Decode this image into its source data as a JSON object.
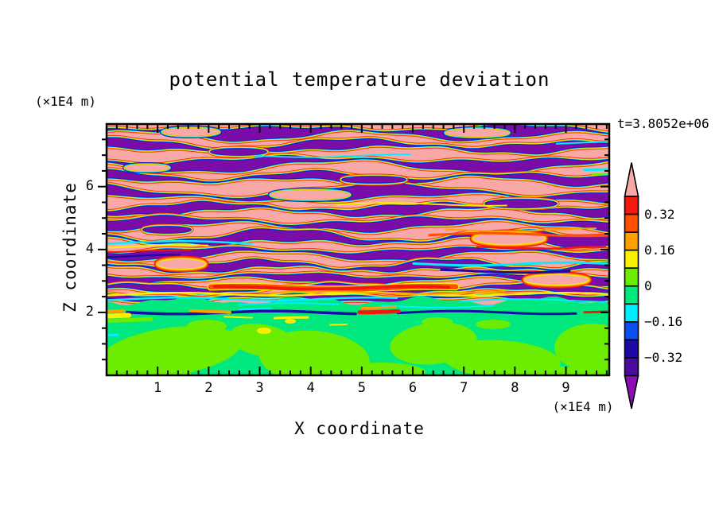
{
  "chart_data": {
    "type": "heatmap",
    "subtype": "filled_contour",
    "title": "potential temperature deviation",
    "annotation": "t=3.8052e+06",
    "xlabel": "X coordinate",
    "x_units": "(×1E4 m)",
    "ylabel": "Z coordinate",
    "y_units": "(×1E4 m)",
    "x_range": [
      0,
      9.85
    ],
    "y_range": [
      0,
      8.0
    ],
    "x_major_ticks": [
      "1",
      "2",
      "3",
      "4",
      "5",
      "6",
      "7",
      "8",
      "9"
    ],
    "x_major_values": [
      1,
      2,
      3,
      4,
      5,
      6,
      7,
      8,
      9
    ],
    "x_minor_step": 0.2,
    "y_major_ticks": [
      "2",
      "4",
      "6"
    ],
    "y_major_values": [
      2,
      4,
      6
    ],
    "y_minor_step": 0.5,
    "grid": false,
    "legend_position": "right",
    "colorbar": {
      "labels": [
        "0.32",
        "0.16",
        "0",
        "−0.16",
        "−0.32"
      ],
      "label_boundary_index": [
        1,
        3,
        5,
        7,
        9
      ],
      "levels": [
        -0.4,
        -0.32,
        -0.24,
        -0.16,
        -0.08,
        0,
        0.08,
        0.16,
        0.24,
        0.32,
        0.4
      ],
      "colors_low_to_high": [
        "#8B0FB5",
        "#4B0B9E",
        "#1C0AA5",
        "#0A50F0",
        "#00EEFF",
        "#00E87E",
        "#6CEC00",
        "#FBF000",
        "#FFA000",
        "#FF5000",
        "#F5180F",
        "#F9A8A8"
      ],
      "under_color": "#8B0FB5",
      "over_color": "#F9A8A8"
    },
    "field_summary": "Stratified wave field: alternating strong positive (pink, >0.4) and strong negative (purple, <-0.4) horizontal bands above z=2e4 m with thin rainbow contour fringes; near-zero (green, ±0.08) convective region below z=2e4 m with a sharp interface line at z≈2e4 m.",
    "render": {
      "bg": "#F9A8A8",
      "band_fill": "#7A0CA8",
      "band_halos": [
        [
          "#F5180F",
          7
        ],
        [
          "#FFA000",
          5.6
        ],
        [
          "#FBF000",
          4.2
        ],
        [
          "#00EEFF",
          2.8
        ],
        [
          "#0A50F0",
          1.8
        ],
        [
          "#1C0AA5",
          0.9
        ]
      ],
      "pink_halos": [
        [
          "#1C0AA5",
          6
        ],
        [
          "#0A50F0",
          4.8
        ],
        [
          "#00EEFF",
          3.6
        ],
        [
          "#6CEC00",
          2.6
        ],
        [
          "#FBF000",
          1.8
        ],
        [
          "#FFA000",
          0.9
        ]
      ],
      "ring_halos": [
        [
          "#F5180F",
          9
        ],
        [
          "#FF5000",
          6.8
        ],
        [
          "#FFA000",
          4.6
        ],
        [
          "#FBF000",
          2.6
        ]
      ],
      "bands": [
        {
          "y": 166,
          "th": 14,
          "amp": 3,
          "wl": 260,
          "ph": 0.5,
          "twl": 300,
          "tph": 1.2,
          "amp2": 1.5,
          "wl2": 97,
          "ph2": 2.0
        },
        {
          "y": 184,
          "th": 10,
          "amp": 4,
          "wl": 330,
          "ph": 2.2,
          "twl": 260,
          "tph": 4.0,
          "amp2": 1.5,
          "wl2": 83,
          "ph2": 0.4
        },
        {
          "y": 205,
          "th": 13,
          "amp": 5,
          "wl": 380,
          "ph": 4.1,
          "twl": 340,
          "tph": 2.6,
          "amp2": 2,
          "wl2": 110,
          "ph2": 3.1
        },
        {
          "y": 224,
          "th": 9,
          "amp": 4,
          "wl": 240,
          "ph": 1.1,
          "twl": 300,
          "tph": 5.2,
          "amp2": 1.5,
          "wl2": 90,
          "ph2": 1.7
        },
        {
          "y": 244,
          "th": 15,
          "amp": 5,
          "wl": 420,
          "ph": 3.3,
          "twl": 380,
          "tph": 0.4,
          "amp2": 2,
          "wl2": 120,
          "ph2": 4.4
        },
        {
          "y": 263,
          "th": 10,
          "amp": 4,
          "wl": 300,
          "ph": 5.0,
          "twl": 280,
          "tph": 2.9,
          "amp2": 1.5,
          "wl2": 76,
          "ph2": 2.6
        },
        {
          "y": 281,
          "th": 11,
          "amp": 4,
          "wl": 350,
          "ph": 0.2,
          "twl": 320,
          "tph": 4.6,
          "amp2": 2,
          "wl2": 105,
          "ph2": 5.0
        },
        {
          "y": 300,
          "th": 12,
          "amp": 5,
          "wl": 270,
          "ph": 2.7,
          "twl": 360,
          "tph": 1.8,
          "amp2": 2,
          "wl2": 88,
          "ph2": 0.8
        },
        {
          "y": 318,
          "th": 10,
          "amp": 4,
          "wl": 310,
          "ph": 4.6,
          "twl": 300,
          "tph": 3.5,
          "amp2": 1.5,
          "wl2": 95,
          "ph2": 3.9
        },
        {
          "y": 335,
          "th": 9,
          "amp": 4,
          "wl": 230,
          "ph": 1.7,
          "twl": 260,
          "tph": 0.9,
          "amp2": 1.5,
          "wl2": 70,
          "ph2": 1.3
        },
        {
          "y": 350,
          "th": 9,
          "amp": 3,
          "wl": 290,
          "ph": 3.9,
          "twl": 310,
          "tph": 5.6,
          "amp2": 1.5,
          "wl2": 102,
          "ph2": 4.7
        },
        {
          "y": 363,
          "th": 7,
          "amp": 3,
          "wl": 250,
          "ph": 0.9,
          "twl": 240,
          "tph": 2.3,
          "amp2": 1,
          "wl2": 65,
          "ph2": 2.2
        },
        {
          "y": 374,
          "th": 5,
          "amp": 2,
          "wl": 270,
          "ph": 2.9,
          "twl": 280,
          "tph": 4.4,
          "amp2": 1,
          "wl2": 80,
          "ph2": 0.6
        }
      ],
      "pink_blobs": [
        {
          "cx": 240,
          "cy": 166,
          "rx": 36,
          "ry": 5
        },
        {
          "cx": 600,
          "cy": 167,
          "rx": 40,
          "ry": 5
        },
        {
          "cx": 390,
          "cy": 245,
          "rx": 50,
          "ry": 6
        },
        {
          "cx": 185,
          "cy": 211,
          "rx": 28,
          "ry": 4
        }
      ],
      "lenses": [
        {
          "cx": 470,
          "cy": 226,
          "rx": 40,
          "ry": 4
        },
        {
          "cx": 300,
          "cy": 191,
          "rx": 35,
          "ry": 4
        },
        {
          "cx": 655,
          "cy": 256,
          "rx": 45,
          "ry": 5
        },
        {
          "cx": 210,
          "cy": 289,
          "rx": 30,
          "ry": 4
        }
      ],
      "ring_blobs": [
        {
          "cx": 228,
          "cy": 332,
          "rx": 30,
          "ry": 6
        },
        {
          "cx": 640,
          "cy": 300,
          "rx": 45,
          "ry": 7
        },
        {
          "cx": 700,
          "cy": 352,
          "rx": 40,
          "ry": 6
        }
      ],
      "streaks": [
        {
          "x0": 135,
          "x1": 320,
          "y": 305,
          "c": "#00EEFF",
          "w": 2.5
        },
        {
          "x0": 135,
          "x1": 265,
          "y": 310,
          "c": "#FBF000",
          "w": 2
        },
        {
          "x0": 135,
          "x1": 240,
          "y": 316,
          "c": "#F5180F",
          "w": 2
        },
        {
          "x0": 135,
          "x1": 230,
          "y": 322,
          "c": "#1C0AA5",
          "w": 2.5
        },
        {
          "x0": 540,
          "x1": 765,
          "y": 295,
          "c": "#FF5000",
          "w": 3
        },
        {
          "x0": 560,
          "x1": 750,
          "y": 289,
          "c": "#FFA000",
          "w": 2
        },
        {
          "x0": 600,
          "x1": 766,
          "y": 311,
          "c": "#F5180F",
          "w": 2.5
        },
        {
          "x0": 520,
          "x1": 766,
          "y": 332,
          "c": "#00EEFF",
          "w": 3
        },
        {
          "x0": 555,
          "x1": 720,
          "y": 341,
          "c": "#1C0AA5",
          "w": 3
        },
        {
          "x0": 700,
          "x1": 766,
          "y": 180,
          "c": "#00EEFF",
          "w": 2
        },
        {
          "x0": 735,
          "x1": 766,
          "y": 212,
          "c": "#00EEFF",
          "w": 3
        },
        {
          "x0": 745,
          "x1": 766,
          "y": 220,
          "c": "#6CEC00",
          "w": 2.5
        },
        {
          "x0": 320,
          "x1": 520,
          "y": 196,
          "c": "#00EEFF",
          "w": 1.8
        },
        {
          "x0": 420,
          "x1": 640,
          "y": 257,
          "c": "#FBF000",
          "w": 1.8
        },
        {
          "x0": 265,
          "x1": 575,
          "y": 362,
          "c": "#FBF000",
          "w": 9
        },
        {
          "x0": 265,
          "x1": 575,
          "y": 362,
          "c": "#FF5000",
          "w": 6.5
        },
        {
          "x0": 270,
          "x1": 570,
          "y": 362,
          "c": "#F5180F",
          "w": 4
        },
        {
          "x0": 135,
          "x1": 766,
          "y": 370,
          "c": "#FBF000",
          "w": 2.5
        },
        {
          "x0": 340,
          "x1": 640,
          "y": 368,
          "c": "#FFA000",
          "w": 2
        },
        {
          "x0": 135,
          "x1": 500,
          "y": 376,
          "c": "#00EEFF",
          "w": 2.5
        },
        {
          "x0": 580,
          "x1": 766,
          "y": 378,
          "c": "#00EEFF",
          "w": 2
        },
        {
          "x0": 300,
          "x1": 430,
          "y": 383,
          "c": "#00EEFF",
          "w": 2
        },
        {
          "x0": 480,
          "x1": 620,
          "y": 385,
          "c": "#00EEFF",
          "w": 2
        },
        {
          "x0": 160,
          "x1": 450,
          "y": 393,
          "c": "#1C0AA5",
          "w": 3.5
        },
        {
          "x0": 500,
          "x1": 730,
          "y": 393,
          "c": "#1C0AA5",
          "w": 3
        },
        {
          "x0": 240,
          "x1": 292,
          "y": 391,
          "c": "#FFA000",
          "w": 4
        },
        {
          "x0": 452,
          "x1": 505,
          "y": 391,
          "c": "#F5180F",
          "w": 5
        },
        {
          "x0": 455,
          "x1": 500,
          "y": 386,
          "c": "#FFA000",
          "w": 3
        },
        {
          "x0": 735,
          "x1": 763,
          "y": 391,
          "c": "#F5180F",
          "w": 3
        },
        {
          "x0": 300,
          "x1": 345,
          "y": 389,
          "c": "#00EEFF",
          "w": 2
        },
        {
          "x0": 345,
          "x1": 390,
          "y": 401,
          "c": "#FBF000",
          "w": 3
        },
        {
          "x0": 415,
          "x1": 442,
          "y": 407,
          "c": "#FBF000",
          "w": 2
        },
        {
          "x0": 282,
          "x1": 320,
          "y": 398,
          "c": "#FBF000",
          "w": 2
        },
        {
          "x0": 134,
          "x1": 168,
          "y": 396,
          "c": "#FBF000",
          "w": 6
        },
        {
          "x0": 134,
          "x1": 190,
          "y": 402,
          "c": "#6CEC00",
          "w": 5
        },
        {
          "x0": 134,
          "x1": 155,
          "y": 390,
          "c": "#FFA000",
          "w": 4
        },
        {
          "x0": 134,
          "x1": 152,
          "y": 420,
          "c": "#00EEFF",
          "w": 3
        }
      ],
      "green": {
        "top": 378,
        "amp1": 4,
        "wl1": 150,
        "ph1": 1.2,
        "amp2": 2,
        "wl2": 57,
        "ph2": 3.0,
        "color": "#00E87E"
      },
      "green_blob_color": "#6CEC00",
      "blobs": [
        {
          "cx": 215,
          "cy": 442,
          "rx": 90,
          "ry": 30,
          "rot": -8
        },
        {
          "cx": 330,
          "cy": 428,
          "rx": 42,
          "ry": 20,
          "rot": 10
        },
        {
          "cx": 395,
          "cy": 450,
          "rx": 70,
          "ry": 34,
          "rot": 5
        },
        {
          "cx": 545,
          "cy": 432,
          "rx": 55,
          "ry": 26,
          "rot": -6
        },
        {
          "cx": 630,
          "cy": 452,
          "rx": 75,
          "ry": 24,
          "rot": 4
        },
        {
          "cx": 745,
          "cy": 437,
          "rx": 48,
          "ry": 30,
          "rot": 0
        },
        {
          "cx": 480,
          "cy": 468,
          "rx": 55,
          "ry": 12,
          "rot": 0
        },
        {
          "cx": 180,
          "cy": 470,
          "rx": 60,
          "ry": 10,
          "rot": 0
        },
        {
          "cx": 690,
          "cy": 470,
          "rx": 80,
          "ry": 9,
          "rot": 0
        },
        {
          "cx": 260,
          "cy": 410,
          "rx": 25,
          "ry": 8,
          "rot": 0
        },
        {
          "cx": 550,
          "cy": 405,
          "rx": 20,
          "ry": 6,
          "rot": 0
        },
        {
          "cx": 620,
          "cy": 408,
          "rx": 22,
          "ry": 6,
          "rot": 0
        }
      ],
      "yellow_spots": [
        {
          "cx": 332,
          "cy": 416,
          "rx": 9,
          "ry": 4
        },
        {
          "cx": 365,
          "cy": 404,
          "rx": 7,
          "ry": 3
        }
      ]
    }
  }
}
